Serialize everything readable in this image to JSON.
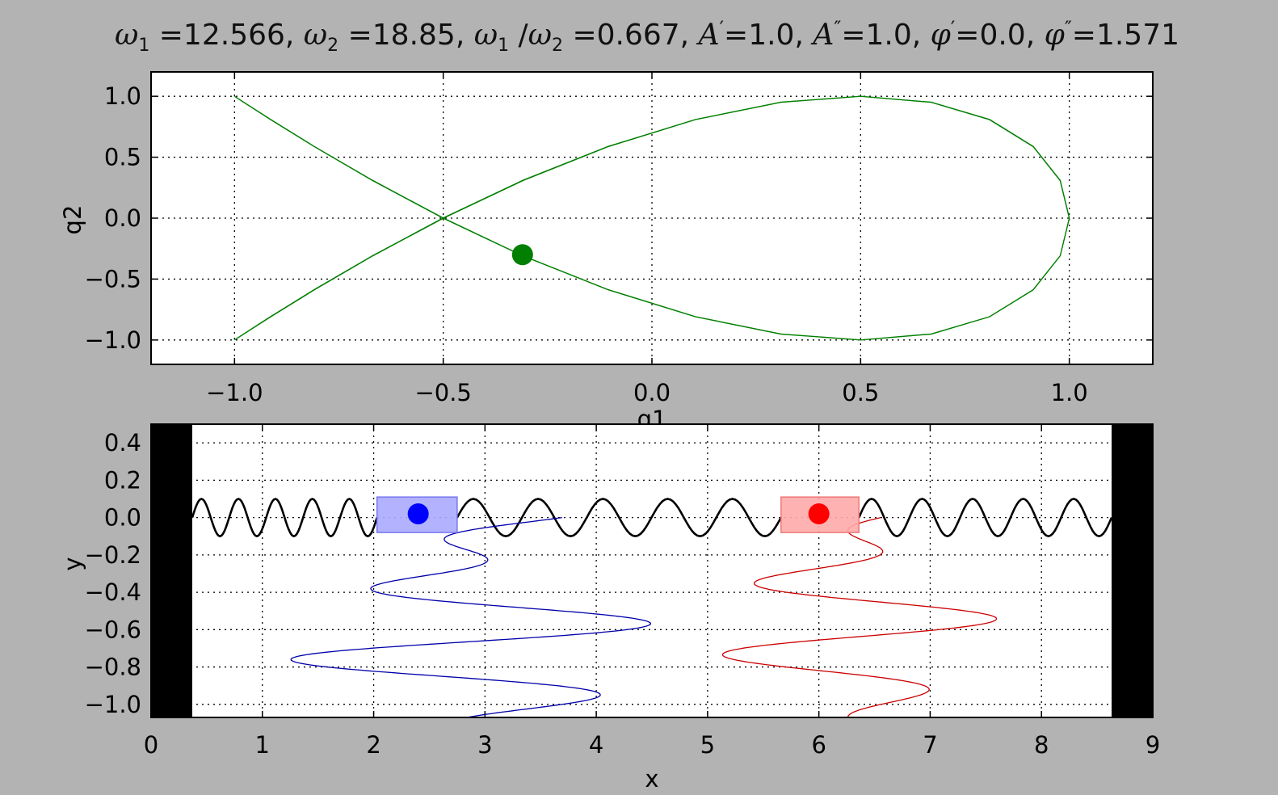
{
  "title_parts": [
    {
      "sym": "ω",
      "sub": "1",
      "eq": " =12.566, "
    },
    {
      "sym": "ω",
      "sub": "2",
      "eq": " =18.85, "
    },
    {
      "sym": "ω",
      "sub": "1",
      "slash": " /",
      "sym2": "ω",
      "sub2": "2",
      "eq": " =0.667, "
    },
    {
      "sym": "A",
      "prime": "′",
      "eq": "=1.0, "
    },
    {
      "sym": "A",
      "prime": "″",
      "eq": "=1.0, "
    },
    {
      "sym": "φ",
      "prime": "′",
      "eq": "=0.0, "
    },
    {
      "sym": "φ",
      "prime": "″",
      "eq": "=1.571"
    }
  ],
  "colors": {
    "background": "#b3b3b3",
    "trajectory": "#007f00",
    "spring": "#000000",
    "wall": "#000000",
    "mass1": "#0000ff",
    "mass1_box": "#aaaaff",
    "mass2": "#ff0000",
    "mass2_box": "#ffaaaa",
    "trace1": "#0000aa",
    "trace2": "#cc0000"
  },
  "chart_data": [
    {
      "type": "line",
      "name": "phase",
      "xlabel": "q1",
      "ylabel": "q2",
      "xlim": [
        -1.2,
        1.2
      ],
      "ylim": [
        -1.2,
        1.2
      ],
      "xticks": [
        -1.0,
        -0.5,
        0.0,
        0.5,
        1.0
      ],
      "yticks": [
        -1.0,
        -0.5,
        0.0,
        0.5,
        1.0
      ],
      "xtick_labels": [
        "−1.0",
        "−0.5",
        "0.0",
        "0.5",
        "1.0"
      ],
      "ytick_labels": [
        "−1.0",
        "−0.5",
        "0.0",
        "0.5",
        "1.0"
      ],
      "grid": true,
      "curve": {
        "x_amplitude": 1.0,
        "x_freq": 12.566,
        "x_phase": 0.0,
        "y_amplitude": 1.0,
        "y_freq": 18.85,
        "y_phase": 1.571
      },
      "current_point": {
        "x": -0.31,
        "y": -0.3
      }
    },
    {
      "type": "line",
      "name": "masses",
      "xlabel": "x",
      "ylabel": "y",
      "xlim": [
        0,
        9
      ],
      "ylim": [
        -1.07,
        0.5
      ],
      "xticks": [
        0,
        1,
        2,
        3,
        4,
        5,
        6,
        7,
        8,
        9
      ],
      "yticks": [
        0.4,
        0.2,
        0.0,
        -0.2,
        -0.4,
        -0.6,
        -0.8,
        -1.0
      ],
      "xtick_labels": [
        "0",
        "1",
        "2",
        "3",
        "4",
        "5",
        "6",
        "7",
        "8",
        "9"
      ],
      "ytick_labels": [
        "0.4",
        "0.2",
        "0.0",
        "−0.2",
        "−0.4",
        "−0.6",
        "−0.8",
        "−1.0"
      ],
      "grid": true,
      "walls": [
        {
          "x0": 0,
          "x1": 0.37
        },
        {
          "x0": 8.63,
          "x1": 9
        }
      ],
      "mass1": {
        "x": 2.4,
        "y": 0.02,
        "box_x0": 2.03,
        "box_x1": 2.75,
        "box_y0": -0.08,
        "box_y1": 0.11
      },
      "mass2": {
        "x": 6.0,
        "y": 0.02,
        "box_x0": 5.66,
        "box_x1": 6.36,
        "box_y0": -0.08,
        "box_y1": 0.11
      },
      "trace1": {
        "center": 2.91,
        "amplitude": 1.7,
        "phase": -0.4,
        "y_start": 0.0,
        "y_end": -1.07
      },
      "trace2": {
        "center": 6.32,
        "amplitude": 1.3,
        "phase": -0.3,
        "y_start": 0.0,
        "y_end": -1.07
      },
      "spring": {
        "amplitude": 0.1
      }
    }
  ]
}
